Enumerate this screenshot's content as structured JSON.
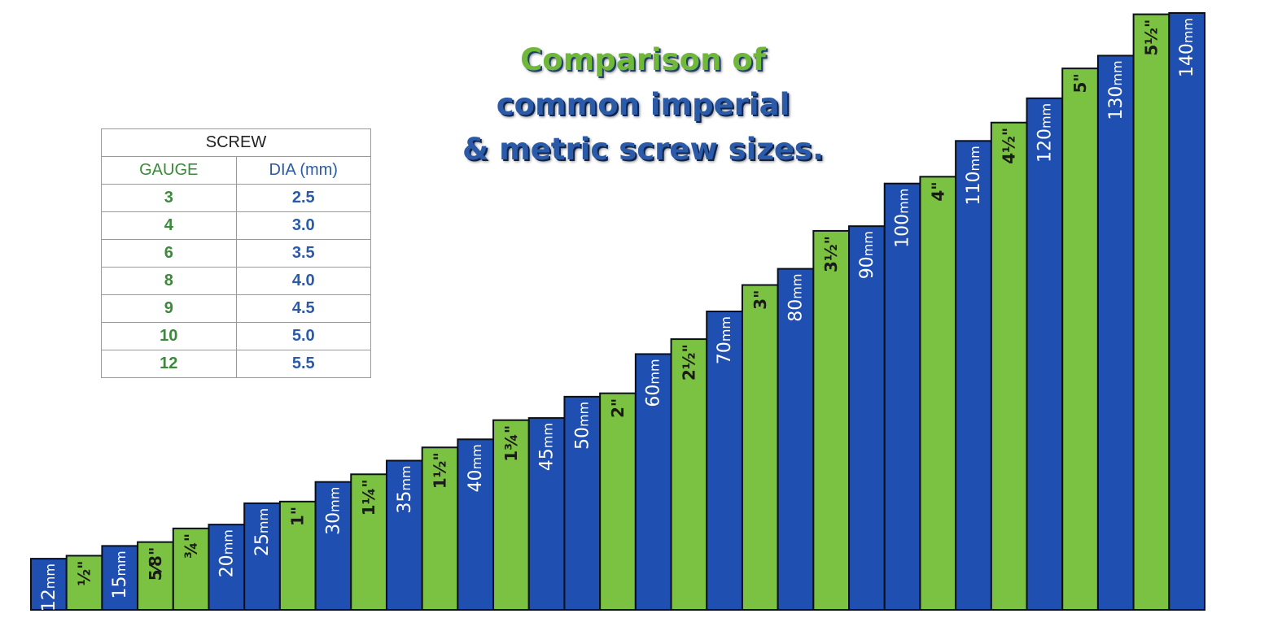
{
  "title": {
    "line1": "Comparison of",
    "line2": "common imperial",
    "line3": "& metric screw sizes."
  },
  "table": {
    "header": "SCREW",
    "col_gauge": "GAUGE",
    "col_dia": "DIA (mm)",
    "rows": [
      {
        "gauge": "3",
        "dia": "2.5"
      },
      {
        "gauge": "4",
        "dia": "3.0"
      },
      {
        "gauge": "6",
        "dia": "3.5"
      },
      {
        "gauge": "8",
        "dia": "4.0"
      },
      {
        "gauge": "9",
        "dia": "4.5"
      },
      {
        "gauge": "10",
        "dia": "5.0"
      },
      {
        "gauge": "12",
        "dia": "5.5"
      }
    ]
  },
  "colors": {
    "metric": "#1f4fb0",
    "imperial": "#7cc242",
    "outline": "#0a0f1a",
    "metric_label": "#ffffff",
    "imperial_label": "#1a1a1a"
  },
  "chart_data": {
    "type": "bar",
    "ylim": [
      0,
      140
    ],
    "bars": [
      {
        "label": "12mm",
        "num": "12",
        "unit": "mm",
        "value": 12,
        "kind": "metric"
      },
      {
        "label": "½\"",
        "value": 12.7,
        "kind": "imperial"
      },
      {
        "label": "15mm",
        "num": "15",
        "unit": "mm",
        "value": 15,
        "kind": "metric"
      },
      {
        "label": "5⁄8\"",
        "value": 15.9,
        "kind": "imperial"
      },
      {
        "label": "¾\"",
        "value": 19.1,
        "kind": "imperial"
      },
      {
        "label": "20mm",
        "num": "20",
        "unit": "mm",
        "value": 20,
        "kind": "metric"
      },
      {
        "label": "25mm",
        "num": "25",
        "unit": "mm",
        "value": 25,
        "kind": "metric"
      },
      {
        "label": "1\"",
        "value": 25.4,
        "kind": "imperial"
      },
      {
        "label": "30mm",
        "num": "30",
        "unit": "mm",
        "value": 30,
        "kind": "metric"
      },
      {
        "label": "1¼\"",
        "value": 31.8,
        "kind": "imperial"
      },
      {
        "label": "35mm",
        "num": "35",
        "unit": "mm",
        "value": 35,
        "kind": "metric"
      },
      {
        "label": "1½\"",
        "value": 38.1,
        "kind": "imperial"
      },
      {
        "label": "40mm",
        "num": "40",
        "unit": "mm",
        "value": 40,
        "kind": "metric"
      },
      {
        "label": "1¾\"",
        "value": 44.5,
        "kind": "imperial"
      },
      {
        "label": "45mm",
        "num": "45",
        "unit": "mm",
        "value": 45,
        "kind": "metric"
      },
      {
        "label": "50mm",
        "num": "50",
        "unit": "mm",
        "value": 50,
        "kind": "metric"
      },
      {
        "label": "2\"",
        "value": 50.8,
        "kind": "imperial"
      },
      {
        "label": "60mm",
        "num": "60",
        "unit": "mm",
        "value": 60,
        "kind": "metric"
      },
      {
        "label": "2½\"",
        "value": 63.5,
        "kind": "imperial"
      },
      {
        "label": "70mm",
        "num": "70",
        "unit": "mm",
        "value": 70,
        "kind": "metric"
      },
      {
        "label": "3\"",
        "value": 76.2,
        "kind": "imperial"
      },
      {
        "label": "80mm",
        "num": "80",
        "unit": "mm",
        "value": 80,
        "kind": "metric"
      },
      {
        "label": "3½\"",
        "value": 88.9,
        "kind": "imperial"
      },
      {
        "label": "90mm",
        "num": "90",
        "unit": "mm",
        "value": 90,
        "kind": "metric"
      },
      {
        "label": "100mm",
        "num": "100",
        "unit": "mm",
        "value": 100,
        "kind": "metric"
      },
      {
        "label": "4\"",
        "value": 101.6,
        "kind": "imperial"
      },
      {
        "label": "110mm",
        "num": "110",
        "unit": "mm",
        "value": 110,
        "kind": "metric"
      },
      {
        "label": "4½\"",
        "value": 114.3,
        "kind": "imperial"
      },
      {
        "label": "120mm",
        "num": "120",
        "unit": "mm",
        "value": 120,
        "kind": "metric"
      },
      {
        "label": "5\"",
        "value": 127,
        "kind": "imperial"
      },
      {
        "label": "130mm",
        "num": "130",
        "unit": "mm",
        "value": 130,
        "kind": "metric"
      },
      {
        "label": "5½\"",
        "value": 139.7,
        "kind": "imperial"
      },
      {
        "label": "140mm",
        "num": "140",
        "unit": "mm",
        "value": 140,
        "kind": "metric"
      }
    ]
  }
}
